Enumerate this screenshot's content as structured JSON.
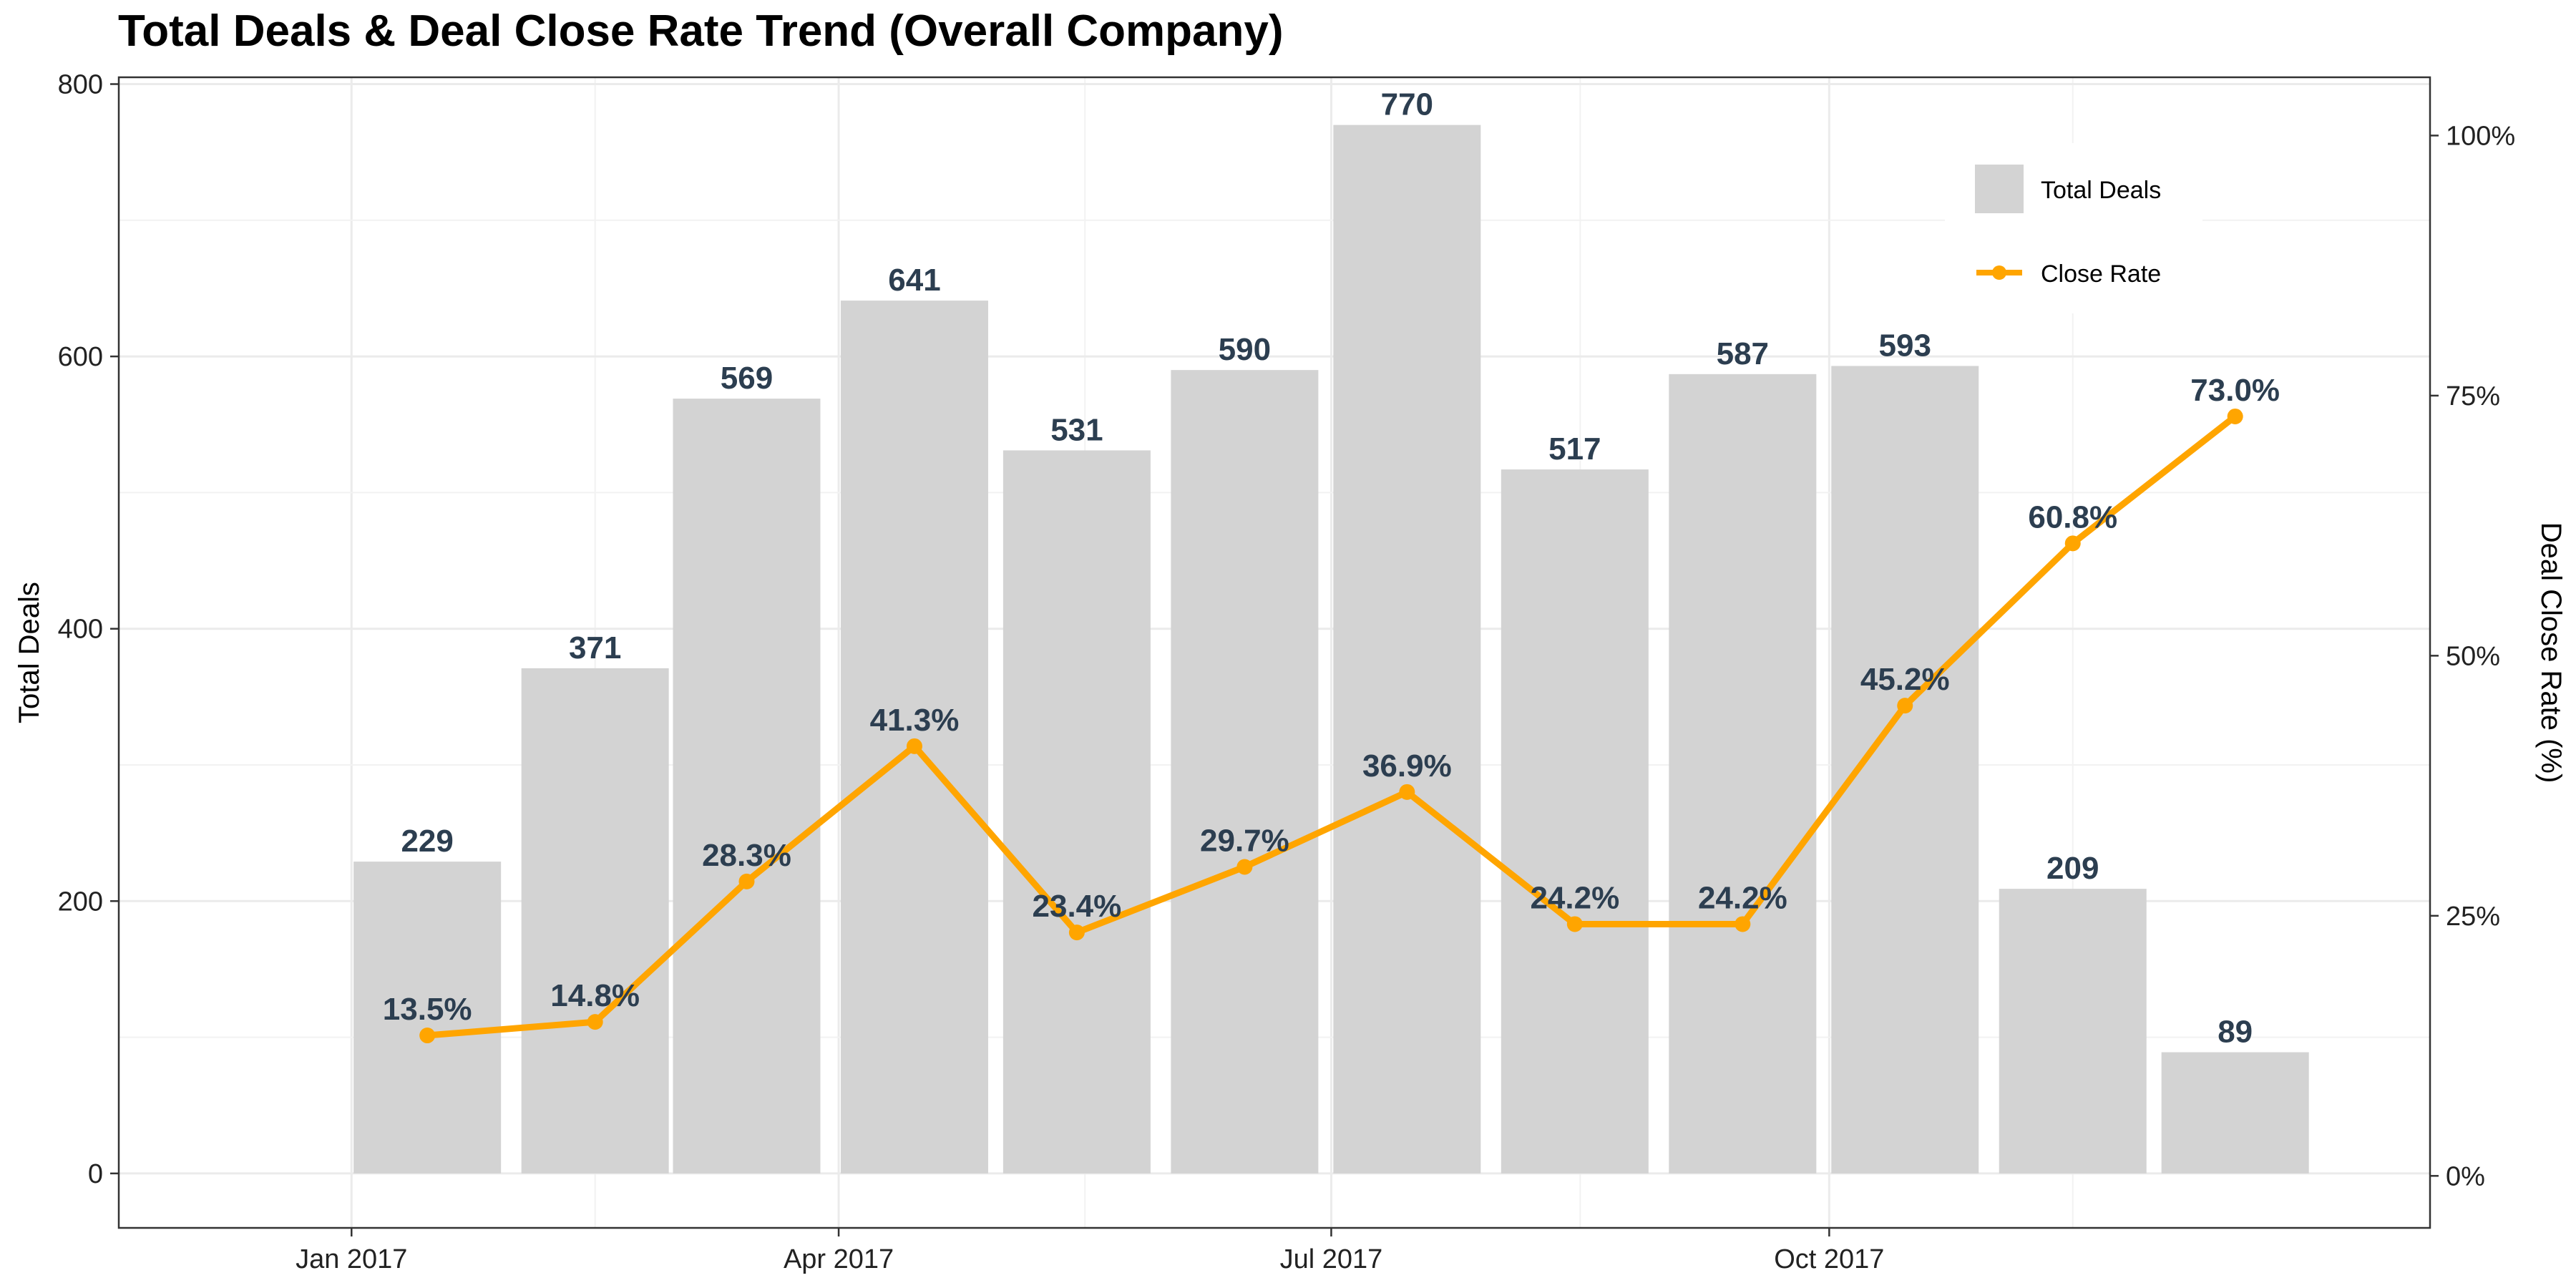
{
  "chart_data": {
    "type": "bar",
    "title": "Total Deals & Deal Close Rate Trend (Overall Company)",
    "y_left_label": "Total Deals",
    "y_right_label": "Deal Close Rate (%)",
    "y_left_ticks": [
      "0",
      "200",
      "400",
      "600",
      "800"
    ],
    "y_left_ylim": [
      -40,
      805
    ],
    "y_right_ticks": [
      "0%",
      "25%",
      "50%",
      "75%",
      "100%"
    ],
    "y_right_ylim": [
      -5,
      105.6
    ],
    "x_tick_labels": [
      "Jan 2017",
      "Apr 2017",
      "Jul 2017",
      "Oct 2017"
    ],
    "x_tick_dates": [
      "2017-01-01",
      "2017-04-01",
      "2017-07-01",
      "2017-10-01"
    ],
    "x_range": [
      "2016-11-19",
      "2018-01-20"
    ],
    "grid": true,
    "legend_position": "top-right",
    "dates": [
      "2017-01-01",
      "2017-02-01",
      "2017-03-01",
      "2017-04-01",
      "2017-05-01",
      "2017-06-01",
      "2017-07-01",
      "2017-08-01",
      "2017-09-01",
      "2017-10-01",
      "2017-11-01",
      "2017-12-01"
    ],
    "series": [
      {
        "name": "Total Deals",
        "kind": "bar",
        "color": "#d3d3d3",
        "values": [
          229,
          371,
          569,
          641,
          531,
          590,
          770,
          517,
          587,
          593,
          209,
          89
        ],
        "labels": [
          "229",
          "371",
          "569",
          "641",
          "531",
          "590",
          "770",
          "517",
          "587",
          "593",
          "209",
          "89"
        ]
      },
      {
        "name": "Close Rate",
        "kind": "line",
        "color": "#ffa500",
        "values": [
          13.5,
          14.8,
          28.3,
          41.3,
          23.4,
          29.7,
          36.9,
          24.2,
          24.2,
          45.2,
          60.8,
          73.0
        ],
        "labels": [
          "13.5%",
          "14.8%",
          "28.3%",
          "41.3%",
          "23.4%",
          "29.7%",
          "36.9%",
          "24.2%",
          "24.2%",
          "45.2%",
          "60.8%",
          "73.0%"
        ]
      }
    ]
  }
}
